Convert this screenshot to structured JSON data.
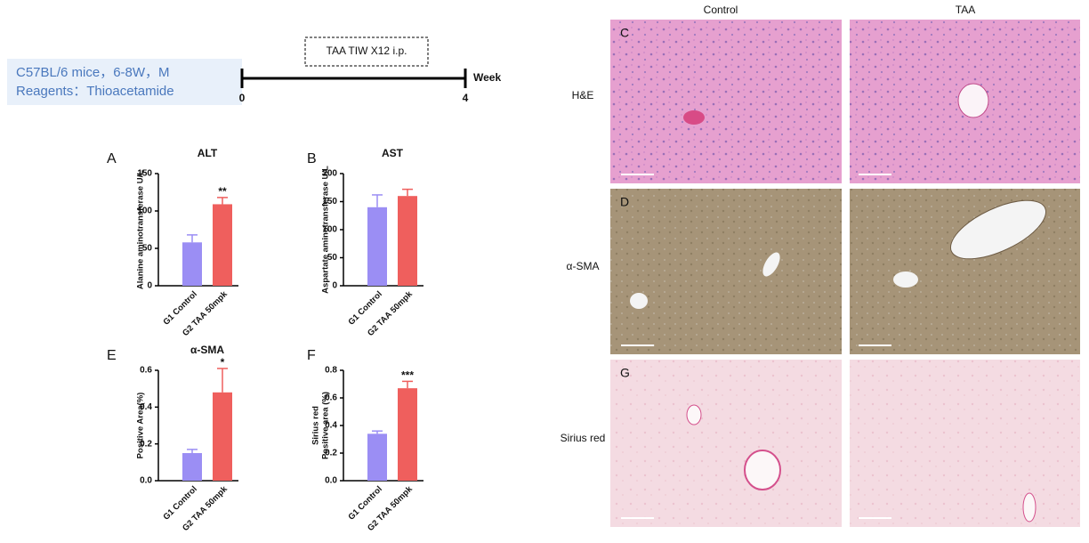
{
  "design": {
    "info_lines": [
      "C57BL/6 mice，6-8W，M",
      "Reagents：Thioacetamide"
    ],
    "treatment": "TAA TIW X12 i.p.",
    "timeline_ticks": [
      0,
      4
    ],
    "timeline_unit": "Week"
  },
  "chart_data": [
    {
      "panel": "A",
      "type": "bar",
      "title": "ALT",
      "y_label": [
        "Alanine aminotransferase U/L"
      ],
      "categories": [
        "G1 Control",
        "G2 TAA 50mpk"
      ],
      "values": [
        58,
        109
      ],
      "errors": [
        10,
        9
      ],
      "colors": [
        "#9b8ef4",
        "#ef5f5d"
      ],
      "value_labels": [
        null,
        "**"
      ],
      "ylim": [
        0,
        150
      ],
      "yticks": [
        0,
        50,
        100,
        150
      ]
    },
    {
      "panel": "B",
      "type": "bar",
      "title": "AST",
      "y_label": [
        "Aspartate aminotransferase U/L"
      ],
      "categories": [
        "G1 Control",
        "G2 TAA 50mpk"
      ],
      "values": [
        140,
        160
      ],
      "errors": [
        22,
        12
      ],
      "colors": [
        "#9b8ef4",
        "#ef5f5d"
      ],
      "ylim": [
        0,
        200
      ],
      "yticks": [
        0,
        50,
        100,
        150,
        200
      ]
    },
    {
      "panel": "E",
      "type": "bar",
      "title": "α-SMA",
      "y_label": [
        "Positive Area(%)"
      ],
      "categories": [
        "G1 Control",
        "G2 TAA 50mpk"
      ],
      "values": [
        0.15,
        0.48
      ],
      "errors": [
        0.02,
        0.13
      ],
      "colors": [
        "#9b8ef4",
        "#ef5f5d"
      ],
      "value_labels": [
        null,
        "*"
      ],
      "ylim": [
        0,
        0.6
      ],
      "yticks": [
        {
          "value": 0,
          "label": "0.0"
        },
        0.2,
        0.4,
        0.6
      ]
    },
    {
      "panel": "F",
      "type": "bar",
      "y_label": [
        "Sirius red",
        "Positive area (%)"
      ],
      "categories": [
        "G1 Control",
        "G2 TAA 50mpk"
      ],
      "values": [
        0.34,
        0.67
      ],
      "errors": [
        0.02,
        0.05
      ],
      "colors": [
        "#9b8ef4",
        "#ef5f5d"
      ],
      "value_labels": [
        null,
        "***"
      ],
      "ylim": [
        0,
        0.8
      ],
      "yticks": [
        {
          "value": 0,
          "label": "0.0"
        },
        0.2,
        0.4,
        0.6,
        0.8
      ]
    }
  ],
  "histology": {
    "columns": [
      "Control",
      "TAA"
    ],
    "panels": [
      "C",
      "D",
      "G"
    ],
    "rows": [
      "H&E",
      "α-SMA",
      "Sirius red"
    ]
  }
}
